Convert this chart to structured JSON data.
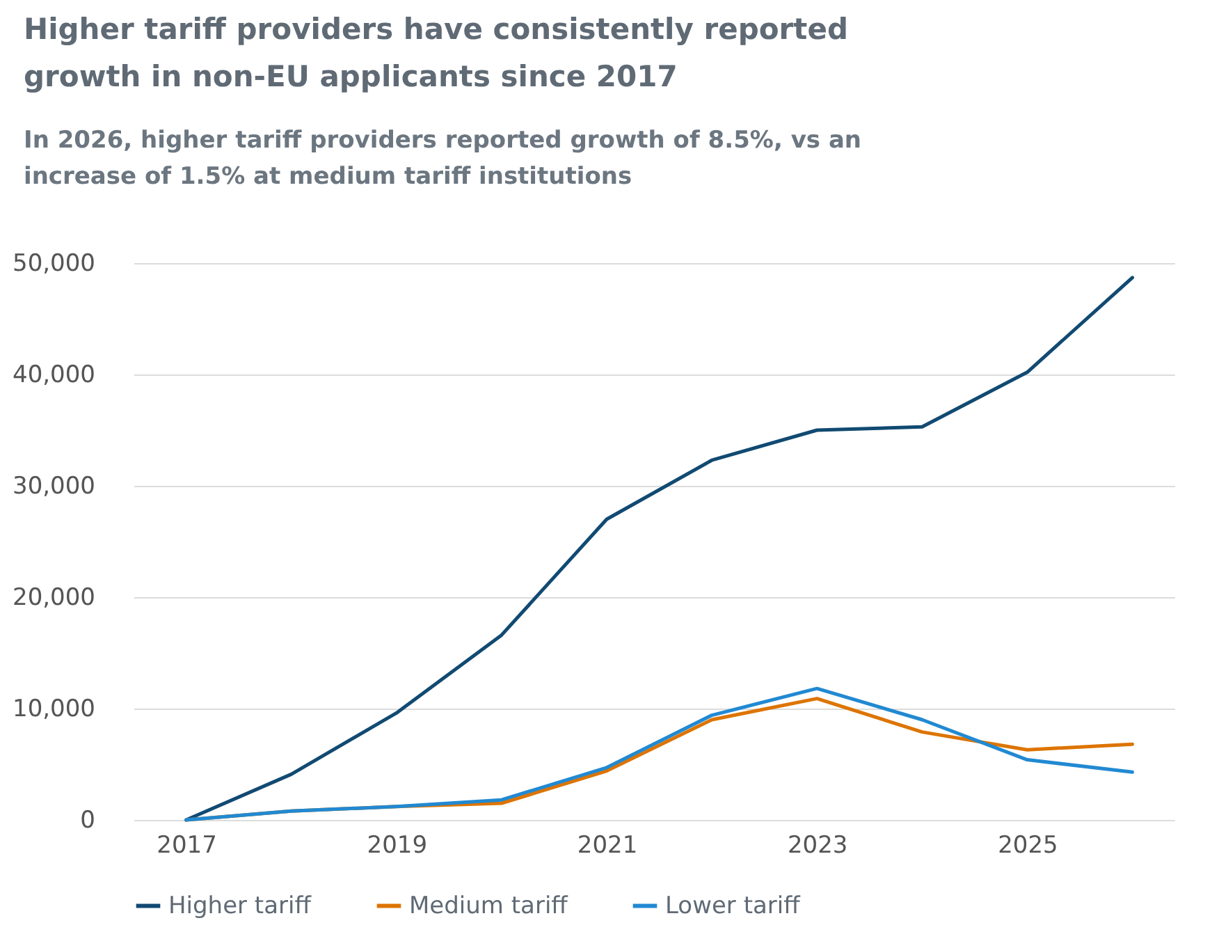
{
  "chart_data": {
    "type": "line",
    "title": "Higher tariff providers have consistently reported growth in non-EU applicants since 2017",
    "subtitle": "In 2026, higher tariff providers reported growth of 8.5%, vs an increase of 1.5% at medium tariff institutions",
    "x": [
      2017,
      2018,
      2019,
      2020,
      2021,
      2022,
      2023,
      2024,
      2025,
      2026
    ],
    "series": [
      {
        "name": "Higher tariff",
        "color": "#114a72",
        "values": [
          0,
          4100,
          9600,
          16600,
          27000,
          32300,
          35000,
          35300,
          40200,
          48700
        ]
      },
      {
        "name": "Medium tariff",
        "color": "#dd7400",
        "values": [
          0,
          800,
          1200,
          1500,
          4400,
          9000,
          10900,
          7900,
          6300,
          6800
        ]
      },
      {
        "name": "Lower tariff",
        "color": "#2189d2",
        "values": [
          0,
          800,
          1200,
          1800,
          4700,
          9400,
          11800,
          9000,
          5400,
          4300
        ]
      }
    ],
    "xlim": [
      2016.5,
      2026.4
    ],
    "xticks": [
      2017,
      2019,
      2021,
      2023,
      2025
    ],
    "ylim": [
      0,
      50000
    ],
    "yticks": [
      0,
      {
        "value": 10000,
        "label": "10,000"
      },
      {
        "value": 20000,
        "label": "20,000"
      },
      {
        "value": 30000,
        "label": "30,000"
      },
      {
        "value": 40000,
        "label": "40,000"
      },
      {
        "value": 50000,
        "label": "50,000"
      }
    ],
    "grid": "y",
    "legend": "bottom",
    "line_style": "solid",
    "marker": "none"
  }
}
